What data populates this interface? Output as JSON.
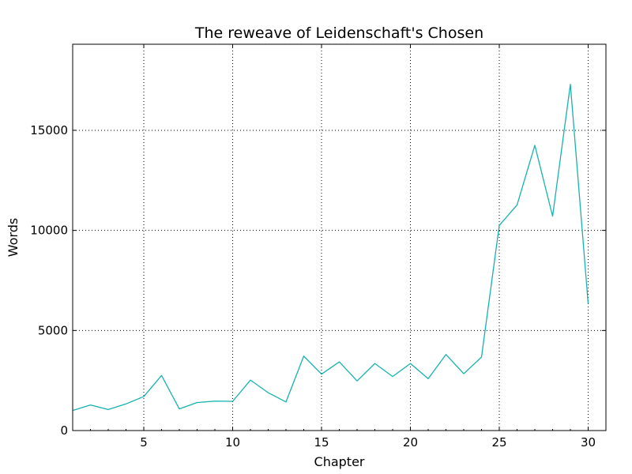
{
  "chart_data": {
    "type": "line",
    "title": "The reweave of Leidenschaft's Chosen",
    "xlabel": "Chapter",
    "ylabel": "Words",
    "xlim": [
      1,
      31
    ],
    "ylim": [
      0,
      19300
    ],
    "xticks": [
      5,
      10,
      15,
      20,
      25,
      30
    ],
    "yticks": [
      0,
      5000,
      10000,
      15000
    ],
    "grid": true,
    "color": "#17b2b0",
    "x": [
      1,
      2,
      3,
      4,
      5,
      6,
      7,
      8,
      9,
      10,
      11,
      12,
      13,
      14,
      15,
      16,
      17,
      18,
      19,
      20,
      21,
      22,
      23,
      24,
      25,
      26,
      27,
      28,
      29,
      30
    ],
    "y": [
      1000,
      1280,
      1050,
      1330,
      1700,
      2750,
      1080,
      1400,
      1470,
      1460,
      2520,
      1890,
      1430,
      3720,
      2820,
      3430,
      2480,
      3350,
      2700,
      3350,
      2590,
      3800,
      2840,
      3670,
      10250,
      11270,
      14250,
      10710,
      17300,
      6340
    ]
  }
}
